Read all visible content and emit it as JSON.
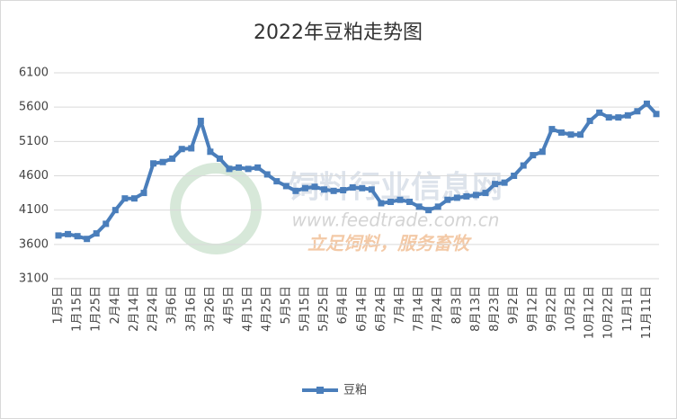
{
  "chart_data": {
    "type": "line",
    "title": "2022年豆粕走势图",
    "watermark": [
      "饲料行业信息网",
      "www.feedtrade.com.cn",
      "立足饲料，服务畜牧"
    ],
    "categories": [
      "1月5日",
      null,
      "1月15日",
      null,
      "1月25日",
      null,
      "2月4日",
      null,
      "2月14日",
      null,
      "2月24日",
      null,
      "3月6日",
      null,
      "3月16日",
      null,
      "3月26日",
      null,
      "4月5日",
      null,
      "4月15日",
      null,
      "4月25日",
      null,
      "5月5日",
      null,
      "5月15日",
      null,
      "5月25日",
      null,
      "6月4日",
      null,
      "6月14日",
      null,
      "6月24日",
      null,
      "7月4日",
      null,
      "7月14日",
      null,
      "7月24日",
      null,
      "8月3日",
      null,
      "8月13日",
      null,
      "8月23日",
      null,
      "9月2日",
      null,
      "9月12日",
      null,
      "9月22日",
      null,
      "10月2日",
      null,
      "10月12日",
      null,
      "10月22日",
      null,
      "11月1日",
      null,
      "11月11日",
      null
    ],
    "series": [
      {
        "name": "豆粕",
        "color": "#4a7ebb",
        "values": [
          3730,
          3750,
          3720,
          3680,
          3760,
          3900,
          4100,
          4270,
          4270,
          4350,
          4780,
          4800,
          4850,
          4990,
          5000,
          5400,
          4950,
          4850,
          4700,
          4720,
          4700,
          4720,
          4620,
          4520,
          4450,
          4380,
          4420,
          4440,
          4400,
          4380,
          4390,
          4430,
          4420,
          4400,
          4200,
          4220,
          4250,
          4220,
          4150,
          4100,
          4150,
          4250,
          4280,
          4300,
          4320,
          4350,
          4480,
          4500,
          4600,
          4750,
          4900,
          4950,
          5280,
          5230,
          5200,
          5200,
          5400,
          5520,
          5450,
          5450,
          5480,
          5540,
          5650,
          5500
        ]
      }
    ],
    "ylim": [
      3100,
      6100
    ],
    "yticks": [
      3100,
      3600,
      4100,
      4600,
      5100,
      5600,
      6100
    ],
    "grid": true,
    "legend": "bottom"
  }
}
